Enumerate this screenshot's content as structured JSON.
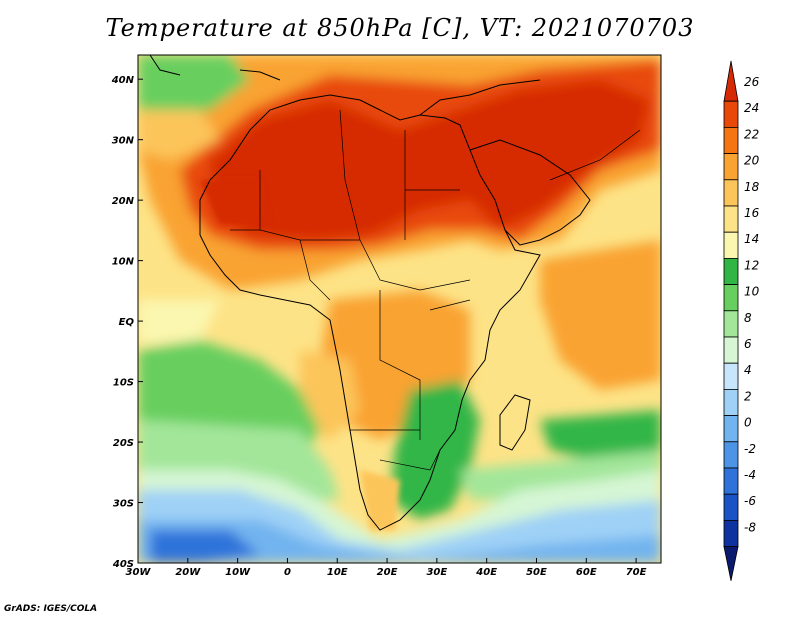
{
  "title": "Temperature at 850hPa [C], VT: 2021070703",
  "credit": "GrADS: IGES/COLA",
  "map": {
    "lon_labels": [
      "30W",
      "20W",
      "10W",
      "0",
      "10E",
      "20E",
      "30E",
      "40E",
      "50E",
      "60E",
      "70E"
    ],
    "lon_values": [
      -30,
      -20,
      -10,
      0,
      10,
      20,
      30,
      40,
      50,
      60,
      70
    ],
    "lat_labels": [
      "40N",
      "30N",
      "20N",
      "10N",
      "EQ",
      "10S",
      "20S",
      "30S",
      "40S"
    ],
    "lat_values": [
      40,
      30,
      20,
      10,
      0,
      -10,
      -20,
      -30,
      -40
    ],
    "lon_range": [
      -30,
      75
    ],
    "lat_range": [
      -40,
      44
    ]
  },
  "legend": {
    "labels": [
      "26",
      "24",
      "22",
      "20",
      "18",
      "16",
      "14",
      "12",
      "10",
      "8",
      "6",
      "4",
      "2",
      "0",
      "-2",
      "-4",
      "-6",
      "-8"
    ],
    "colors": [
      "#d62a04",
      "#e84808",
      "#f47512",
      "#f9a332",
      "#fcc55a",
      "#fde387",
      "#fbf7b0",
      "#31b646",
      "#67cf5f",
      "#a3e69a",
      "#d6f6d4",
      "#c7e6fb",
      "#9fd1f6",
      "#72b4ef",
      "#4e94e6",
      "#2f73da",
      "#1b52c4",
      "#0e33a0",
      "#0a1a6e"
    ]
  }
}
